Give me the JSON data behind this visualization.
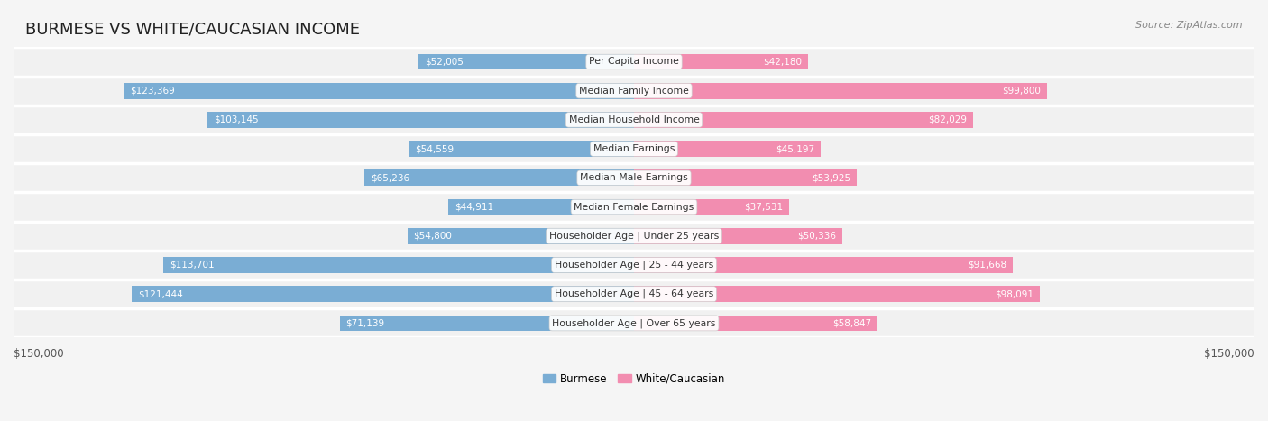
{
  "title": "BURMESE VS WHITE/CAUCASIAN INCOME",
  "source": "Source: ZipAtlas.com",
  "categories": [
    "Per Capita Income",
    "Median Family Income",
    "Median Household Income",
    "Median Earnings",
    "Median Male Earnings",
    "Median Female Earnings",
    "Householder Age | Under 25 years",
    "Householder Age | 25 - 44 years",
    "Householder Age | 45 - 64 years",
    "Householder Age | Over 65 years"
  ],
  "burmese_values": [
    52005,
    123369,
    103145,
    54559,
    65236,
    44911,
    54800,
    113701,
    121444,
    71139
  ],
  "white_values": [
    42180,
    99800,
    82029,
    45197,
    53925,
    37531,
    50336,
    91668,
    98091,
    58847
  ],
  "burmese_labels": [
    "$52,005",
    "$123,369",
    "$103,145",
    "$54,559",
    "$65,236",
    "$44,911",
    "$54,800",
    "$113,701",
    "$121,444",
    "$71,139"
  ],
  "white_labels": [
    "$42,180",
    "$99,800",
    "$82,029",
    "$45,197",
    "$53,925",
    "$37,531",
    "$50,336",
    "$91,668",
    "$98,091",
    "$58,847"
  ],
  "burmese_color": "#7aadd4",
  "white_color": "#f28db0",
  "burmese_color_dark": "#5b9ec9",
  "white_color_dark": "#ee6d99",
  "max_value": 150000,
  "x_label_left": "$150,000",
  "x_label_right": "$150,000",
  "legend_burmese": "Burmese",
  "legend_white": "White/Caucasian",
  "bg_color": "#f5f5f5",
  "row_bg_color": "#ffffff",
  "row_alt_bg": "#f0f0f0",
  "title_fontsize": 13,
  "label_fontsize": 8.5,
  "category_fontsize": 8.5
}
